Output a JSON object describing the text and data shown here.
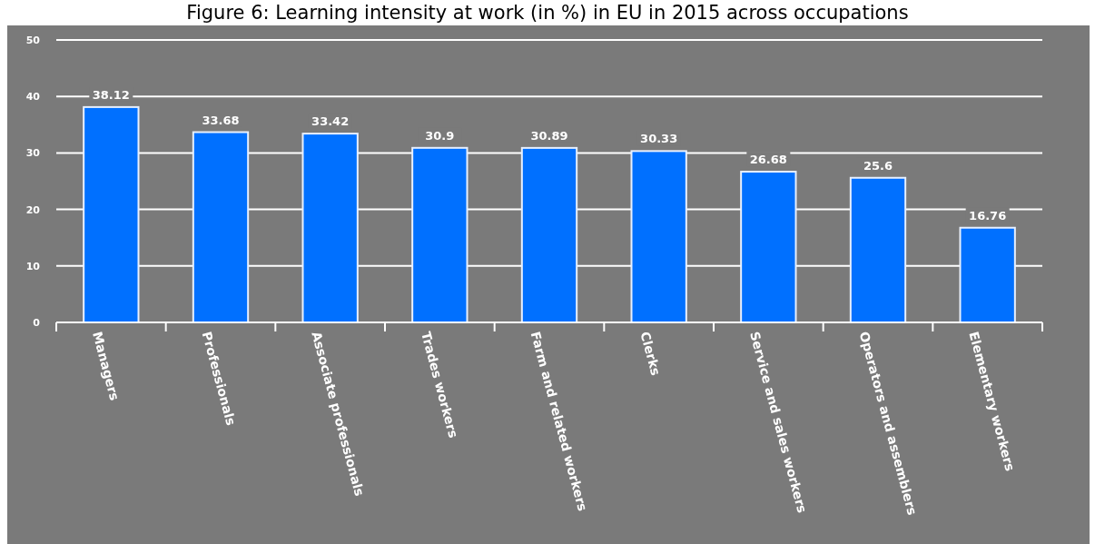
{
  "chart_data": {
    "type": "bar",
    "title": "Figure 6: Learning intensity at work (in %) in EU in 2015 across occupations",
    "categories": [
      "Managers",
      "Professionals",
      "Associate professionals",
      "Trades workers",
      "Farm and related workers",
      "Clerks",
      "Service and sales workers",
      "Operators and assemblers",
      "Elementary workers"
    ],
    "values": [
      38.12,
      33.68,
      33.42,
      30.9,
      30.89,
      30.33,
      26.68,
      25.6,
      16.76
    ],
    "color": "#0070ff",
    "ylim": [
      0,
      50
    ],
    "yticks": [
      0,
      10,
      20,
      30,
      40,
      50
    ],
    "grid": "y",
    "data_labels": true
  }
}
